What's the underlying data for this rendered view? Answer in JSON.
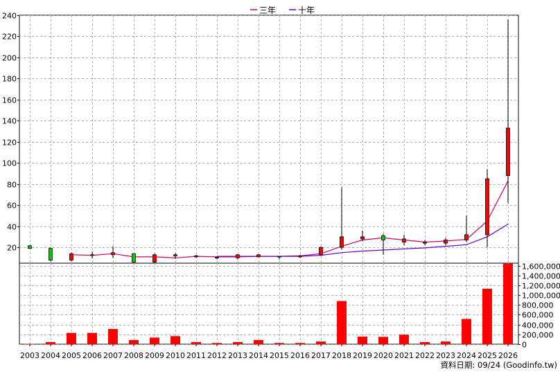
{
  "chart_data": {
    "type": "candlestick",
    "legend": {
      "placement": "top-center",
      "entries": [
        {
          "label": "三年",
          "color": "#cc0066"
        },
        {
          "label": "十年",
          "color": "#6600cc"
        }
      ]
    },
    "years": [
      "2003",
      "2004",
      "2005",
      "2006",
      "2007",
      "2008",
      "2009",
      "2010",
      "2011",
      "2012",
      "2013",
      "2014",
      "2015",
      "2016",
      "2017",
      "2018",
      "2019",
      "2020",
      "2021",
      "2022",
      "2023",
      "2024",
      "2025",
      "2026"
    ],
    "price_axis": {
      "ylim": [
        5,
        240
      ],
      "ticks": [
        20,
        40,
        60,
        80,
        100,
        120,
        140,
        160,
        180,
        200,
        220,
        240
      ]
    },
    "volume_axis": {
      "ylim": [
        0,
        1650000
      ],
      "ticks": [
        "0",
        "200,000",
        "400,000",
        "600,000",
        "800,000",
        "1,000,000",
        "1,200,000",
        "1,400,000",
        "1,600,000"
      ],
      "tick_values": [
        0,
        200000,
        400000,
        600000,
        800000,
        1000000,
        1200000,
        1400000,
        1600000
      ]
    },
    "candles": [
      {
        "year": "2003",
        "open": 21.5,
        "high": 22,
        "low": 18.5,
        "close": 19
      },
      {
        "year": "2004",
        "open": 19,
        "high": 20,
        "low": 7,
        "close": 8
      },
      {
        "year": "2005",
        "open": 8,
        "high": 15,
        "low": 7,
        "close": 14
      },
      {
        "year": "2006",
        "open": 12.5,
        "high": 16,
        "low": 9.5,
        "close": 13
      },
      {
        "year": "2007",
        "open": 13,
        "high": 21,
        "low": 10,
        "close": 15
      },
      {
        "year": "2008",
        "open": 14,
        "high": 14,
        "low": 5,
        "close": 6
      },
      {
        "year": "2009",
        "open": 6,
        "high": 14,
        "low": 5,
        "close": 13
      },
      {
        "year": "2010",
        "open": 12,
        "high": 14.5,
        "low": 9,
        "close": 13
      },
      {
        "year": "2011",
        "open": 11,
        "high": 13,
        "low": 10,
        "close": 12
      },
      {
        "year": "2012",
        "open": 10.5,
        "high": 11.5,
        "low": 8.5,
        "close": 10
      },
      {
        "year": "2013",
        "open": 10,
        "high": 13.5,
        "low": 8.5,
        "close": 13
      },
      {
        "year": "2014",
        "open": 11,
        "high": 13.5,
        "low": 10.5,
        "close": 13
      },
      {
        "year": "2015",
        "open": 11.5,
        "high": 12,
        "low": 8.5,
        "close": 11
      },
      {
        "year": "2016",
        "open": 11,
        "high": 13,
        "low": 10,
        "close": 12
      },
      {
        "year": "2017",
        "open": 13,
        "high": 21,
        "low": 12,
        "close": 20
      },
      {
        "year": "2018",
        "open": 20,
        "high": 77,
        "low": 18,
        "close": 30
      },
      {
        "year": "2019",
        "open": 28,
        "high": 36,
        "low": 26,
        "close": 30
      },
      {
        "year": "2020",
        "open": 31,
        "high": 33,
        "low": 13,
        "close": 27
      },
      {
        "year": "2021",
        "open": 25,
        "high": 32,
        "low": 22,
        "close": 28
      },
      {
        "year": "2022",
        "open": 24,
        "high": 27,
        "low": 22,
        "close": 25
      },
      {
        "year": "2023",
        "open": 24,
        "high": 29,
        "low": 22,
        "close": 27
      },
      {
        "year": "2024",
        "open": 27,
        "high": 50,
        "low": 25,
        "close": 32
      },
      {
        "year": "2025",
        "open": 32,
        "high": 94,
        "low": 20,
        "close": 85
      },
      {
        "year": "2026",
        "open": 88,
        "high": 236,
        "low": 62,
        "close": 133
      }
    ],
    "series": [
      {
        "name": "三年",
        "color": "#cc0066",
        "x": [
          "2005",
          "2006",
          "2007",
          "2008",
          "2009",
          "2010",
          "2011",
          "2012",
          "2013",
          "2014",
          "2015",
          "2016",
          "2017",
          "2018",
          "2019",
          "2020",
          "2021",
          "2022",
          "2023",
          "2024",
          "2025",
          "2026"
        ],
        "values": [
          13,
          12.5,
          14,
          11,
          11,
          10,
          11.5,
          11,
          11,
          11.5,
          11.5,
          12,
          14,
          21,
          27,
          29,
          27,
          25,
          26,
          27.5,
          45,
          83
        ]
      },
      {
        "name": "十年",
        "color": "#6600cc",
        "x": [
          "2012",
          "2013",
          "2014",
          "2015",
          "2016",
          "2017",
          "2018",
          "2019",
          "2020",
          "2021",
          "2022",
          "2023",
          "2024",
          "2025",
          "2026"
        ],
        "values": [
          11.5,
          11.5,
          11.5,
          11.5,
          11.5,
          12.5,
          15,
          16.5,
          17.5,
          18.5,
          19.5,
          21,
          22.5,
          30,
          42
        ]
      }
    ],
    "volume": [
      8000,
      45000,
      230000,
      230000,
      310000,
      85000,
      135000,
      165000,
      45000,
      25000,
      45000,
      85000,
      25000,
      25000,
      55000,
      880000,
      155000,
      150000,
      195000,
      45000,
      55000,
      515000,
      1130000,
      1640000
    ],
    "grid": true,
    "up_color": "#ff0000",
    "down_color": "#00cc00"
  },
  "footer": {
    "source_text": "資料日期: 09/24 (Goodinfo.tw)"
  }
}
